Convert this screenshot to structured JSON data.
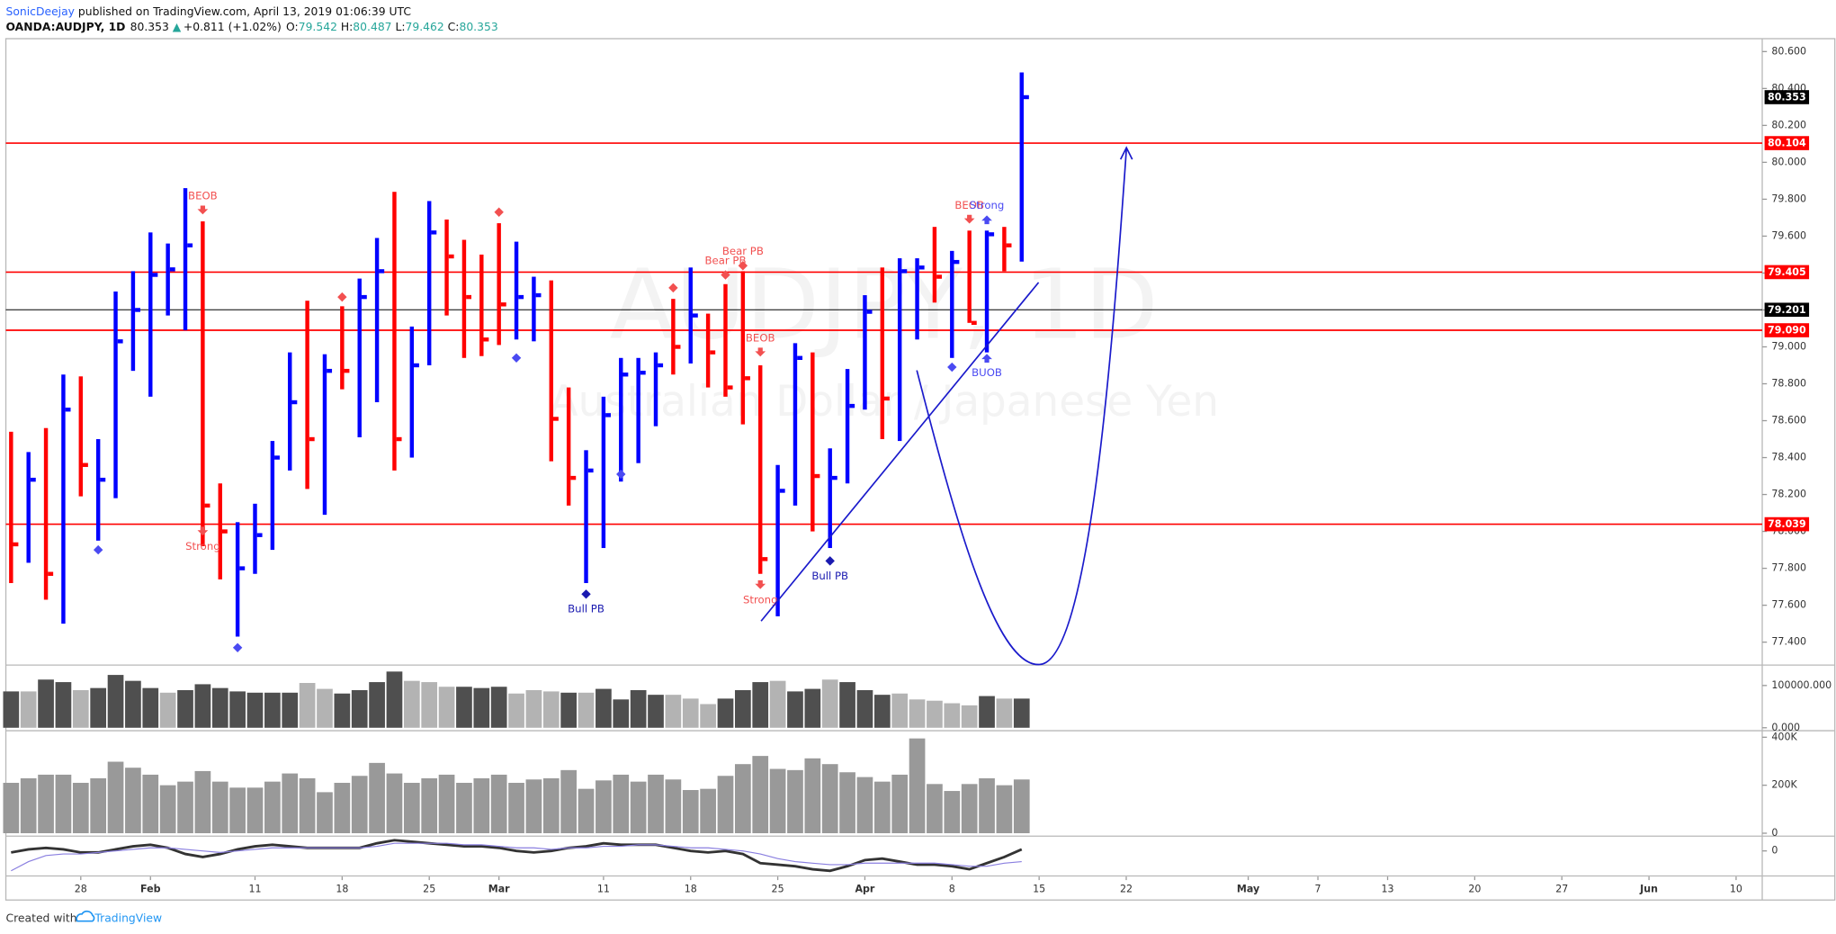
{
  "header": {
    "author": "SonicDeejay",
    "published": "published on TradingView.com, April 13, 2019 01:06:39 UTC",
    "symbol": "OANDA:AUDJPY, 1D",
    "arrow": "▲",
    "change": "+0.811 (+1.02%)",
    "o": "O:",
    "h": "H:",
    "l": "L:",
    "c": "C:"
  },
  "chart_data": [
    {
      "type": "ohlc",
      "watermark": "AUDJPY, 1D",
      "subtitle": "Australian Dollar / Japanese Yen",
      "open": [
        78.3,
        77.93,
        78.28,
        77.77,
        78.66,
        78,
        78.28,
        79.03,
        79.2,
        79.39,
        79.42,
        79.55,
        78.14,
        77.6,
        77.8,
        77.98,
        78.4,
        78.7,
        78.5,
        79,
        78.87,
        79.27,
        79.41,
        78.5,
        78.9,
        79.62,
        79.49,
        79.27,
        79.4,
        79.23,
        79.27,
        79.28,
        78.61,
        78.29,
        78.33,
        78.63,
        78.85,
        78.86,
        79.1,
        79,
        79.17,
        78.97,
        79,
        78.83,
        77.85,
        78.22,
        78.94,
        78,
        78.29,
        78.68,
        79.19,
        78.72,
        79.41,
        79.43,
        79.38,
        79.46,
        79.13,
        79.61,
        79.542
      ],
      "high": [
        78.54,
        78.43,
        78.56,
        78.85,
        78.84,
        78.5,
        79.3,
        79.41,
        79.62,
        79.56,
        79.86,
        79.68,
        78.26,
        78.05,
        78.15,
        78.49,
        78.97,
        79.25,
        78.96,
        79.22,
        79.37,
        79.59,
        79.84,
        79.11,
        79.79,
        79.69,
        79.58,
        79.5,
        79.67,
        79.57,
        79.38,
        79.36,
        78.78,
        78.44,
        78.73,
        78.94,
        78.94,
        78.97,
        79.26,
        79.43,
        79.18,
        79.34,
        79.41,
        78.9,
        78.36,
        79.02,
        78.97,
        78.45,
        78.88,
        79.28,
        79.43,
        79.48,
        79.48,
        79.65,
        79.52,
        79.63,
        79.63,
        79.65,
        80.487
      ],
      "low": [
        77.72,
        77.83,
        77.63,
        77.5,
        78.19,
        77.95,
        78.18,
        78.87,
        78.73,
        79.17,
        79.09,
        77.92,
        77.74,
        77.43,
        77.77,
        77.9,
        78.33,
        78.23,
        78.09,
        78.77,
        78.51,
        78.7,
        78.33,
        78.4,
        78.9,
        79.17,
        78.94,
        78.95,
        79.01,
        79.04,
        79.03,
        78.38,
        78.14,
        77.72,
        77.91,
        78.27,
        78.37,
        78.57,
        78.85,
        78.91,
        78.78,
        78.73,
        78.58,
        77.77,
        77.54,
        78.14,
        78,
        77.91,
        78.26,
        78.66,
        78.5,
        78.49,
        79.04,
        79.24,
        78.94,
        79.13,
        78.97,
        79.41,
        79.462
      ],
      "close": [
        77.93,
        78.28,
        77.77,
        78.66,
        78.36,
        78.28,
        79.03,
        79.2,
        79.39,
        79.42,
        79.55,
        78.14,
        78,
        77.8,
        77.98,
        78.4,
        78.7,
        78.5,
        78.87,
        78.87,
        79.27,
        79.41,
        78.5,
        78.9,
        79.62,
        79.49,
        79.27,
        79.04,
        79.23,
        79.27,
        79.28,
        78.61,
        78.29,
        78.33,
        78.63,
        78.85,
        78.86,
        78.9,
        79,
        79.17,
        78.97,
        78.78,
        78.83,
        77.85,
        78.22,
        78.94,
        78.3,
        78.29,
        78.68,
        79.19,
        78.72,
        79.41,
        79.43,
        79.38,
        79.46,
        79.13,
        79.61,
        79.55,
        80.353
      ],
      "up_color": "#0000ff",
      "down_color": "#ff0000",
      "xlim": [
        -0.3,
        100.5
      ],
      "xticks": [
        {
          "value": 4,
          "label": "28"
        },
        {
          "value": 8,
          "label": "Feb"
        },
        {
          "value": 14,
          "label": "11"
        },
        {
          "value": 19,
          "label": "18"
        },
        {
          "value": 24,
          "label": "25"
        },
        {
          "value": 28,
          "label": "Mar"
        },
        {
          "value": 34,
          "label": "11"
        },
        {
          "value": 39,
          "label": "18"
        },
        {
          "value": 44,
          "label": "25"
        },
        {
          "value": 49,
          "label": "Apr"
        },
        {
          "value": 54,
          "label": "8"
        },
        {
          "value": 59,
          "label": "15"
        },
        {
          "value": 64,
          "label": "22"
        },
        {
          "value": 71,
          "label": "May"
        },
        {
          "value": 75,
          "label": "7"
        },
        {
          "value": 79,
          "label": "13"
        },
        {
          "value": 84,
          "label": "20"
        },
        {
          "value": 89,
          "label": "27"
        },
        {
          "value": 94,
          "label": "Jun"
        },
        {
          "value": 99,
          "label": "10"
        }
      ],
      "ylim": [
        77.279,
        80.67
      ],
      "yticks": [
        {
          "value": 77.4,
          "label": "77.400"
        },
        {
          "value": 77.6,
          "label": "77.600"
        },
        {
          "value": 77.8,
          "label": "77.800"
        },
        {
          "value": 78,
          "label": "78.000"
        },
        {
          "value": 78.2,
          "label": "78.200"
        },
        {
          "value": 78.4,
          "label": "78.400"
        },
        {
          "value": 78.6,
          "label": "78.600"
        },
        {
          "value": 78.8,
          "label": "78.800"
        },
        {
          "value": 79,
          "label": "79.000"
        },
        {
          "value": 79.2,
          "label": "79.200"
        },
        {
          "value": 79.4,
          "label": "79.400"
        },
        {
          "value": 79.6,
          "label": "79.600"
        },
        {
          "value": 79.8,
          "label": "79.800"
        },
        {
          "value": 80,
          "label": "80.000"
        },
        {
          "value": 80.2,
          "label": "80.200"
        },
        {
          "value": 80.4,
          "label": "80.400"
        },
        {
          "value": 80.6,
          "label": "80.600"
        }
      ],
      "levels": [
        {
          "value": 80.104,
          "label": "80.104",
          "color": "#ff0000"
        },
        {
          "value": 79.405,
          "label": "79.405",
          "color": "#ff0000"
        },
        {
          "value": 79.201,
          "label": "79.201",
          "color": "#000000"
        },
        {
          "value": 79.09,
          "label": "79.090",
          "color": "#ff0000"
        },
        {
          "value": 78.039,
          "label": "78.039",
          "color": "#ff0000"
        }
      ],
      "last_color": "#000000",
      "markers": [
        {
          "index": 5,
          "price": 77.9,
          "shape": "diamond",
          "color": "#4a4af2"
        },
        {
          "index": 11,
          "price": 79.74,
          "shape": "arrow-down",
          "color": "#f25050",
          "label": "BEOB",
          "label_pos": "above"
        },
        {
          "index": 11,
          "price": 78,
          "shape": "arrow-down",
          "color": "#f25050",
          "label": "Strong",
          "label_pos": "below"
        },
        {
          "index": 13,
          "price": 77.37,
          "shape": "diamond",
          "color": "#4a4af2"
        },
        {
          "index": 19,
          "price": 79.27,
          "shape": "diamond",
          "color": "#f25050"
        },
        {
          "index": 28,
          "price": 79.73,
          "shape": "diamond",
          "color": "#f25050"
        },
        {
          "index": 29,
          "price": 78.94,
          "shape": "diamond",
          "color": "#4a4af2"
        },
        {
          "index": 33,
          "price": 77.66,
          "shape": "diamond",
          "color": "#1a1ab0",
          "label": "Bull PB",
          "label_pos": "below"
        },
        {
          "index": 35,
          "price": 78.31,
          "shape": "diamond",
          "color": "#4a4af2"
        },
        {
          "index": 38,
          "price": 79.32,
          "shape": "diamond",
          "color": "#f25050"
        },
        {
          "index": 41,
          "price": 79.39,
          "shape": "diamond",
          "color": "#f25050",
          "label": "Bear PB",
          "label_pos": "above"
        },
        {
          "index": 42,
          "price": 79.44,
          "shape": "diamond",
          "color": "#f25050",
          "label": "Bear PB",
          "label_pos": "above"
        },
        {
          "index": 43,
          "price": 78.97,
          "shape": "arrow-down",
          "color": "#f25050",
          "label": "BEOB",
          "label_pos": "above"
        },
        {
          "index": 43,
          "price": 77.71,
          "shape": "arrow-down",
          "color": "#f25050",
          "label": "Strong",
          "label_pos": "below"
        },
        {
          "index": 47,
          "price": 77.84,
          "shape": "diamond",
          "color": "#1a1ab0",
          "label": "Bull PB",
          "label_pos": "below"
        },
        {
          "index": 54,
          "price": 78.89,
          "shape": "diamond",
          "color": "#4a4af2"
        },
        {
          "index": 55,
          "price": 79.69,
          "shape": "arrow-down",
          "color": "#f25050",
          "label": "BEOB",
          "label_pos": "above"
        },
        {
          "index": 56,
          "price": 79.69,
          "shape": "arrow-up",
          "color": "#4a4af2",
          "label": "Strong",
          "label_pos": "above"
        },
        {
          "index": 56,
          "price": 78.94,
          "shape": "arrow-up",
          "color": "#4a4af2",
          "label": "BUOB",
          "label_pos": "below"
        }
      ]
    },
    {
      "type": "volume",
      "values": [
        86000,
        86000,
        114000,
        108000,
        89000,
        94000,
        125000,
        111000,
        94000,
        83000,
        89000,
        103000,
        94000,
        86000,
        83000,
        83000,
        83000,
        106000,
        92000,
        81000,
        89000,
        108000,
        133000,
        111000,
        108000,
        97000,
        97000,
        94000,
        97000,
        81000,
        89000,
        86000,
        83000,
        83000,
        92000,
        67000,
        89000,
        78000,
        78000,
        69000,
        56000,
        69000,
        89000,
        108000,
        111000,
        86000,
        92000,
        114000,
        108000,
        89000,
        78000,
        81000,
        67000,
        64000,
        58000,
        53000,
        75000,
        69000,
        69000
      ],
      "colors": [
        "#4f4f4f",
        "#b3b3b3",
        "#4f4f4f",
        "#4f4f4f",
        "#b3b3b3",
        "#4f4f4f",
        "#4f4f4f",
        "#4f4f4f",
        "#4f4f4f",
        "#b3b3b3",
        "#4f4f4f",
        "#4f4f4f",
        "#4f4f4f",
        "#4f4f4f",
        "#4f4f4f",
        "#4f4f4f",
        "#4f4f4f",
        "#b3b3b3",
        "#b3b3b3",
        "#4f4f4f",
        "#4f4f4f",
        "#4f4f4f",
        "#4f4f4f",
        "#b3b3b3",
        "#b3b3b3",
        "#b3b3b3",
        "#4f4f4f",
        "#4f4f4f",
        "#4f4f4f",
        "#b3b3b3",
        "#b3b3b3",
        "#b3b3b3",
        "#4f4f4f",
        "#b3b3b3",
        "#4f4f4f",
        "#4f4f4f",
        "#4f4f4f",
        "#4f4f4f",
        "#b3b3b3",
        "#b3b3b3",
        "#b3b3b3",
        "#4f4f4f",
        "#4f4f4f",
        "#4f4f4f",
        "#b3b3b3",
        "#4f4f4f",
        "#4f4f4f",
        "#b3b3b3",
        "#4f4f4f",
        "#4f4f4f",
        "#4f4f4f",
        "#b3b3b3",
        "#b3b3b3",
        "#b3b3b3",
        "#b3b3b3",
        "#b3b3b3",
        "#4f4f4f",
        "#b3b3b3",
        "#4f4f4f"
      ],
      "ylim": [
        0,
        147000
      ],
      "yticks": [
        {
          "value": 100000,
          "label": "100000.000"
        },
        {
          "value": 0,
          "label": "0.000"
        }
      ]
    },
    {
      "type": "volume",
      "values": [
        210000,
        229000,
        244000,
        244000,
        210000,
        229000,
        298000,
        273000,
        244000,
        200000,
        215000,
        259000,
        215000,
        190000,
        190000,
        215000,
        249000,
        229000,
        171000,
        210000,
        239000,
        293000,
        249000,
        210000,
        229000,
        244000,
        210000,
        229000,
        244000,
        210000,
        224000,
        229000,
        263000,
        185000,
        220000,
        244000,
        215000,
        244000,
        224000,
        180000,
        185000,
        239000,
        288000,
        322000,
        268000,
        263000,
        312000,
        288000,
        254000,
        234000,
        215000,
        244000,
        395000,
        205000,
        176000,
        205000,
        229000,
        200000,
        224000
      ],
      "color": "#999999",
      "ylim": [
        0,
        420000
      ],
      "yticks": [
        {
          "value": 400000,
          "label": "400K"
        },
        {
          "value": 200000,
          "label": "200K"
        },
        0
      ]
    },
    {
      "type": "line",
      "series": [
        {
          "color": "#333333",
          "values": [
            -0.1,
            0.1,
            0.2,
            0.1,
            -0.1,
            -0.1,
            0.1,
            0.3,
            0.4,
            0.2,
            -0.2,
            -0.4,
            -0.2,
            0.1,
            0.3,
            0.4,
            0.3,
            0.2,
            0.2,
            0.2,
            0.2,
            0.5,
            0.7,
            0.6,
            0.5,
            0.4,
            0.3,
            0.3,
            0.2,
            0,
            -0.1,
            0,
            0.2,
            0.3,
            0.5,
            0.4,
            0.4,
            0.4,
            0.2,
            0,
            -0.1,
            0,
            -0.2,
            -0.8,
            -0.9,
            -1,
            -1.2,
            -1.3,
            -1,
            -0.6,
            -0.5,
            -0.7,
            -0.9,
            -0.9,
            -1,
            -1.2,
            -0.8,
            -0.4,
            0.1
          ]
        },
        {
          "color": "#8a7fe0",
          "values": [
            -1.3,
            -0.7,
            -0.3,
            -0.2,
            -0.2,
            -0.1,
            0,
            0.1,
            0.2,
            0.2,
            0.1,
            0,
            -0.1,
            0,
            0.1,
            0.2,
            0.2,
            0.2,
            0.2,
            0.2,
            0.2,
            0.3,
            0.5,
            0.5,
            0.5,
            0.5,
            0.4,
            0.4,
            0.3,
            0.2,
            0.2,
            0.1,
            0.2,
            0.2,
            0.3,
            0.3,
            0.4,
            0.4,
            0.3,
            0.2,
            0.2,
            0.1,
            0,
            -0.2,
            -0.5,
            -0.7,
            -0.8,
            -0.9,
            -0.9,
            -0.8,
            -0.8,
            -0.8,
            -0.8,
            -0.8,
            -0.9,
            -1,
            -1,
            -0.8,
            -0.7
          ]
        }
      ],
      "ylim": [
        -1.6,
        0.85
      ],
      "yticks": [
        0
      ]
    }
  ],
  "footer": {
    "created": "Created with",
    "brand": "TradingView"
  }
}
